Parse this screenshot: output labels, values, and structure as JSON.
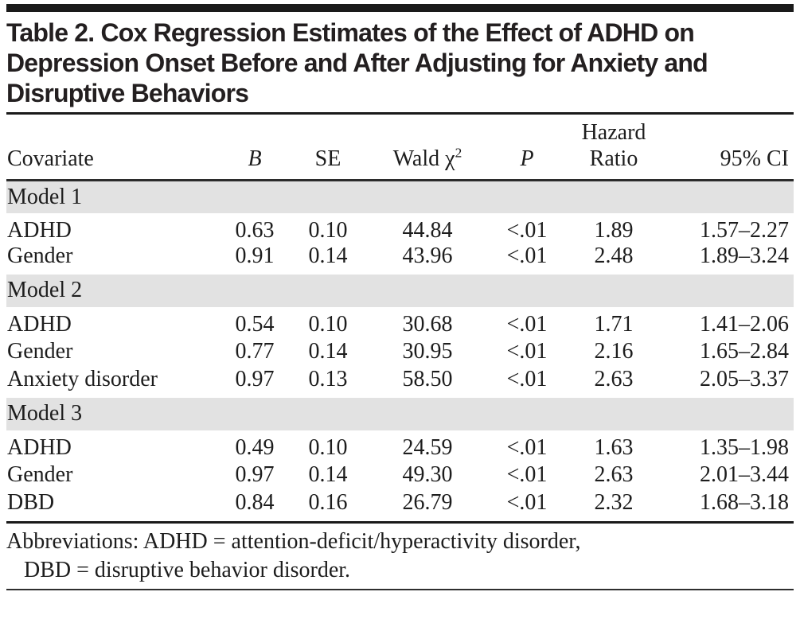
{
  "colors": {
    "rule_black": "#1a1a1a",
    "band_gray": "#e2e2e2",
    "text": "#1d1d1d"
  },
  "title_lines": [
    "Table 2. Cox Regression Estimates of the Effect of ADHD on",
    "Depression Onset Before and After Adjusting for Anxiety and",
    "Disruptive Behaviors"
  ],
  "header": {
    "covariate": "Covariate",
    "b": "B",
    "se": "SE",
    "wald_base": "Wald χ",
    "wald_sup": "2",
    "p": "P",
    "hazard_line1": "Hazard",
    "hazard_line2": "Ratio",
    "ci": "95% CI"
  },
  "sections": [
    {
      "label": "Model 1",
      "rows": [
        [
          "ADHD",
          "0.63",
          "0.10",
          "44.84",
          "<.01",
          "1.89",
          "1.57–2.27"
        ],
        [
          "Gender",
          "0.91",
          "0.14",
          "43.96",
          "<.01",
          "2.48",
          "1.89–3.24"
        ]
      ]
    },
    {
      "label": "Model 2",
      "rows": [
        [
          "ADHD",
          "0.54",
          "0.10",
          "30.68",
          "<.01",
          "1.71",
          "1.41–2.06"
        ],
        [
          "Gender",
          "0.77",
          "0.14",
          "30.95",
          "<.01",
          "2.16",
          "1.65–2.84"
        ],
        [
          "Anxiety disorder",
          "0.97",
          "0.13",
          "58.50",
          "<.01",
          "2.63",
          "2.05–3.37"
        ]
      ]
    },
    {
      "label": "Model 3",
      "rows": [
        [
          "ADHD",
          "0.49",
          "0.10",
          "24.59",
          "<.01",
          "1.63",
          "1.35–1.98"
        ],
        [
          "Gender",
          "0.97",
          "0.14",
          "49.30",
          "<.01",
          "2.63",
          "2.01–3.44"
        ],
        [
          "DBD",
          "0.84",
          "0.16",
          "26.79",
          "<.01",
          "2.32",
          "1.68–3.18"
        ]
      ]
    }
  ],
  "footnote_lines": [
    "Abbreviations: ADHD = attention-deficit/hyperactivity disorder,",
    "DBD = disruptive behavior disorder."
  ]
}
